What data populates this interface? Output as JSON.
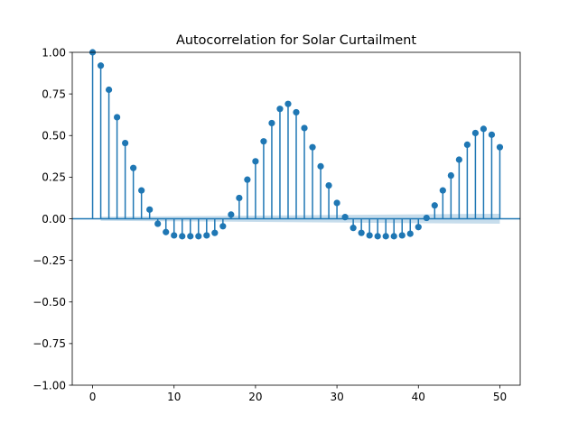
{
  "chart_data": {
    "type": "stem",
    "title": "Autocorrelation for Solar Curtailment",
    "xlabel": "",
    "ylabel": "",
    "xlim": [
      -2.5,
      52.5
    ],
    "ylim": [
      -1.0,
      1.0
    ],
    "x_ticks": [
      0,
      10,
      20,
      30,
      40,
      50
    ],
    "y_ticks": [
      -1.0,
      -0.75,
      -0.5,
      -0.25,
      0.0,
      0.25,
      0.5,
      0.75,
      1.0
    ],
    "x_tick_labels": [
      "0",
      "10",
      "20",
      "30",
      "40",
      "50"
    ],
    "y_tick_labels": [
      "−1.00",
      "−0.75",
      "−0.50",
      "−0.25",
      "0.00",
      "0.25",
      "0.50",
      "0.75",
      "1.00"
    ],
    "grid": false,
    "lags": [
      0,
      1,
      2,
      3,
      4,
      5,
      6,
      7,
      8,
      9,
      10,
      11,
      12,
      13,
      14,
      15,
      16,
      17,
      18,
      19,
      20,
      21,
      22,
      23,
      24,
      25,
      26,
      27,
      28,
      29,
      30,
      31,
      32,
      33,
      34,
      35,
      36,
      37,
      38,
      39,
      40,
      41,
      42,
      43,
      44,
      45,
      46,
      47,
      48,
      49,
      50
    ],
    "acf": [
      1.0,
      0.92,
      0.775,
      0.61,
      0.455,
      0.305,
      0.17,
      0.055,
      -0.03,
      -0.08,
      -0.1,
      -0.105,
      -0.105,
      -0.105,
      -0.1,
      -0.085,
      -0.045,
      0.025,
      0.125,
      0.235,
      0.345,
      0.465,
      0.575,
      0.66,
      0.69,
      0.64,
      0.545,
      0.43,
      0.315,
      0.2,
      0.095,
      0.01,
      -0.055,
      -0.085,
      -0.1,
      -0.105,
      -0.105,
      -0.105,
      -0.1,
      -0.09,
      -0.05,
      0.005,
      0.08,
      0.17,
      0.26,
      0.355,
      0.445,
      0.515,
      0.54,
      0.505,
      0.43
    ],
    "confidence_band": {
      "lags": [
        1,
        50
      ],
      "upper": [
        0.012,
        0.03
      ],
      "lower": [
        -0.012,
        -0.03
      ]
    },
    "colors": {
      "stem": "#1f77b4",
      "marker": "#1f77b4",
      "band": "#1f77b4",
      "zero_line": "#1f77b4"
    }
  }
}
